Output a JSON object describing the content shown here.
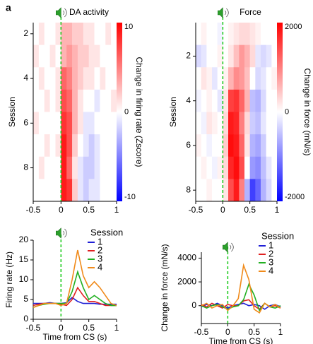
{
  "panel_label": "a",
  "chart_data": [
    {
      "type": "heatmap",
      "title": "DA activity",
      "ylabel": "Session",
      "colorbar_label": "Change in firing rate (Zscore)",
      "x": [
        -0.45,
        -0.35,
        -0.25,
        -0.15,
        -0.05,
        0.05,
        0.15,
        0.25,
        0.35,
        0.45,
        0.55,
        0.65,
        0.75,
        0.85,
        0.95
      ],
      "rows": [
        2,
        3,
        4,
        5,
        6,
        7,
        8,
        9
      ],
      "values": [
        [
          0,
          1,
          0,
          0,
          1,
          3,
          3,
          2,
          2,
          1,
          1,
          0,
          0,
          1,
          0
        ],
        [
          1,
          0,
          0,
          1,
          0,
          3,
          4,
          3,
          2,
          2,
          1,
          1,
          0,
          0,
          0
        ],
        [
          0,
          1,
          0,
          0,
          1,
          6,
          5,
          3,
          2,
          1,
          1,
          0,
          1,
          0,
          0
        ],
        [
          0,
          0,
          1,
          0,
          1,
          7,
          6,
          3,
          1,
          0,
          0,
          -1,
          0,
          0,
          1
        ],
        [
          1,
          0,
          0,
          0,
          0,
          8,
          7,
          3,
          1,
          -1,
          -1,
          0,
          0,
          0,
          0
        ],
        [
          0,
          0,
          1,
          0,
          1,
          9,
          7,
          2,
          0,
          -1,
          -2,
          -1,
          0,
          0,
          0
        ],
        [
          0,
          1,
          0,
          0,
          0,
          9,
          6,
          1,
          -1,
          -2,
          -2,
          -1,
          0,
          0,
          0
        ],
        [
          0,
          0,
          0,
          0,
          0,
          9,
          8,
          2,
          -1,
          -2,
          -1,
          -1,
          0,
          0,
          0
        ]
      ],
      "xlim": [
        -0.5,
        1
      ],
      "xticks": [
        -0.5,
        0,
        0.5,
        1
      ],
      "ylim": [
        1.5,
        9.5
      ],
      "yticks": [
        2,
        4,
        6,
        8
      ],
      "clim": [
        -10,
        10
      ],
      "cticks": [
        10,
        0,
        -10
      ],
      "colors": [
        "#0000ff",
        "#ffffff",
        "#ff0000"
      ],
      "event_line": {
        "x": 0,
        "color": "#22cc22"
      }
    },
    {
      "type": "heatmap",
      "title": "Force",
      "ylabel": "Session",
      "colorbar_label": "Change in force (mN/s)",
      "x": [
        -0.45,
        -0.35,
        -0.25,
        -0.15,
        -0.05,
        0.05,
        0.15,
        0.25,
        0.35,
        0.45,
        0.55,
        0.65,
        0.75,
        0.85,
        0.95
      ],
      "rows": [
        1,
        2,
        3,
        4,
        5,
        6,
        7,
        8
      ],
      "values": [
        [
          0,
          100,
          0,
          0,
          -100,
          0,
          100,
          200,
          300,
          300,
          200,
          100,
          0,
          0,
          0
        ],
        [
          -300,
          -200,
          0,
          0,
          100,
          0,
          200,
          500,
          800,
          600,
          300,
          -200,
          -300,
          -200,
          0
        ],
        [
          0,
          200,
          100,
          -200,
          0,
          100,
          600,
          900,
          800,
          500,
          0,
          -300,
          -200,
          0,
          100
        ],
        [
          -100,
          0,
          100,
          0,
          -200,
          200,
          1500,
          1600,
          1200,
          600,
          -500,
          -600,
          -300,
          0,
          0
        ],
        [
          0,
          -100,
          200,
          100,
          0,
          300,
          1800,
          1700,
          1000,
          300,
          -400,
          -500,
          -200,
          0,
          0
        ],
        [
          100,
          0,
          -100,
          0,
          0,
          400,
          1900,
          1800,
          1200,
          200,
          -600,
          -700,
          -400,
          0,
          0
        ],
        [
          0,
          100,
          0,
          -100,
          100,
          300,
          1700,
          1900,
          1400,
          0,
          -800,
          -900,
          -500,
          -200,
          0
        ],
        [
          0,
          0,
          100,
          0,
          0,
          200,
          1400,
          1800,
          1000,
          -600,
          -1500,
          -1200,
          -600,
          -300,
          0
        ]
      ],
      "xlim": [
        -0.5,
        1
      ],
      "xticks": [
        -0.5,
        0,
        0.5,
        1
      ],
      "ylim": [
        0.5,
        8.5
      ],
      "yticks": [
        2,
        4,
        6,
        8
      ],
      "clim": [
        -2000,
        2000
      ],
      "cticks": [
        2000,
        0,
        -2000
      ],
      "colors": [
        "#0000ff",
        "#ffffff",
        "#ff0000"
      ],
      "event_line": {
        "x": 0,
        "color": "#22cc22"
      }
    },
    {
      "type": "line",
      "ylabel": "Firing rate (Hz)",
      "xlabel": "Time from  CS (s)",
      "legend_title": "Session",
      "legend": "upper right",
      "x": [
        -0.5,
        -0.4,
        -0.3,
        -0.2,
        -0.1,
        0,
        0.1,
        0.2,
        0.3,
        0.4,
        0.5,
        0.6,
        0.7,
        0.8,
        0.9,
        1
      ],
      "series": [
        {
          "name": "1",
          "color": "#1f1fd6",
          "values": [
            4,
            4,
            4,
            4.2,
            4,
            4,
            4.2,
            5.5,
            4.5,
            4,
            4,
            4,
            3.8,
            3.8,
            3.8,
            3.8
          ]
        },
        {
          "name": "2",
          "color": "#e02020",
          "values": [
            3.5,
            3.8,
            4,
            4,
            4,
            3.8,
            3.5,
            5,
            8,
            6,
            4.5,
            4.5,
            4,
            3.5,
            3.5,
            3.5
          ]
        },
        {
          "name": "3",
          "color": "#22b022",
          "values": [
            3,
            3.5,
            3.8,
            4,
            4,
            4,
            4,
            7,
            12,
            8,
            5,
            6,
            5,
            4,
            3.5,
            3.5
          ]
        },
        {
          "name": "4",
          "color": "#f08a1a",
          "values": [
            3,
            3.5,
            4,
            4,
            4,
            3.5,
            4,
            10,
            17.5,
            11,
            8,
            9.5,
            8,
            6,
            4,
            3.5
          ]
        }
      ],
      "xlim": [
        -0.5,
        1
      ],
      "xticks": [
        -0.5,
        0,
        0.5,
        1
      ],
      "ylim": [
        0,
        20
      ],
      "yticks": [
        0,
        5,
        10,
        15,
        20
      ],
      "event_line": {
        "x": 0,
        "color": "#22cc22"
      }
    },
    {
      "type": "line",
      "ylabel": "Change in force (mN/s)",
      "xlabel": "Time from  CS (s)",
      "legend_title": "Session",
      "legend": "upper right",
      "x": [
        -0.5,
        -0.4,
        -0.3,
        -0.2,
        -0.1,
        0,
        0.1,
        0.2,
        0.3,
        0.4,
        0.5,
        0.6,
        0.7,
        0.8,
        0.9,
        1
      ],
      "series": [
        {
          "name": "1",
          "color": "#1f1fd6",
          "values": [
            -100,
            100,
            0,
            200,
            0,
            -200,
            0,
            100,
            200,
            0,
            100,
            0,
            -300,
            0,
            100,
            -100
          ]
        },
        {
          "name": "2",
          "color": "#e02020",
          "values": [
            100,
            -100,
            200,
            0,
            -200,
            100,
            0,
            0,
            400,
            500,
            0,
            -300,
            200,
            -100,
            0,
            -200
          ]
        },
        {
          "name": "3",
          "color": "#22b022",
          "values": [
            0,
            -200,
            0,
            100,
            -100,
            -300,
            -100,
            0,
            500,
            1800,
            900,
            -400,
            200,
            -100,
            -200,
            0
          ]
        },
        {
          "name": "4",
          "color": "#f08a1a",
          "values": [
            0,
            200,
            -200,
            0,
            100,
            -400,
            0,
            600,
            3400,
            2200,
            -300,
            -600,
            200,
            -100,
            100,
            -200
          ]
        }
      ],
      "xlim": [
        -0.5,
        1
      ],
      "xticks": [
        -0.5,
        0,
        0.5,
        1
      ],
      "ylim": [
        -1500,
        4500
      ],
      "yticks": [
        0,
        2000,
        4000
      ],
      "event_line": {
        "x": 0,
        "color": "#22cc22"
      }
    }
  ]
}
